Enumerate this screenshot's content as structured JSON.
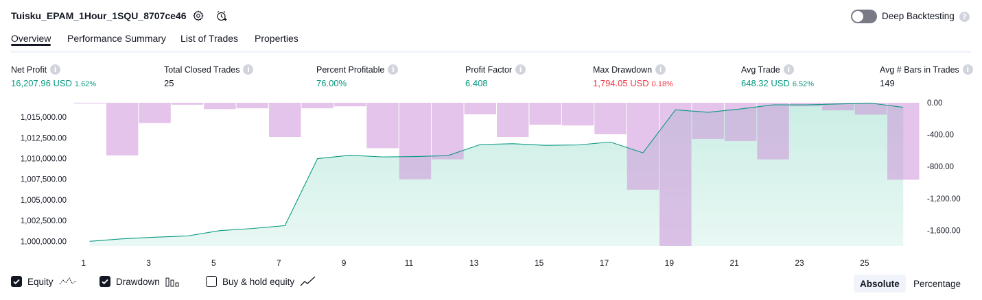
{
  "header": {
    "title": "Tuisku_EPAM_1Hour_1SQU_8707ce46",
    "deep_backtesting_label": "Deep Backtesting",
    "deep_backtesting_enabled": false
  },
  "tabs": [
    {
      "label": "Overview",
      "active": true
    },
    {
      "label": "Performance Summary",
      "active": false
    },
    {
      "label": "List of Trades",
      "active": false
    },
    {
      "label": "Properties",
      "active": false
    }
  ],
  "metrics": [
    {
      "label": "Net Profit",
      "value": "16,207.96 USD",
      "pct": "1.62%",
      "tone": "green"
    },
    {
      "label": "Total Closed Trades",
      "value": "25",
      "pct": "",
      "tone": "neutral"
    },
    {
      "label": "Percent Profitable",
      "value": "76.00%",
      "pct": "",
      "tone": "green"
    },
    {
      "label": "Profit Factor",
      "value": "6.408",
      "pct": "",
      "tone": "green"
    },
    {
      "label": "Max Drawdown",
      "value": "1,794.05 USD",
      "pct": "0.18%",
      "tone": "red"
    },
    {
      "label": "Avg Trade",
      "value": "648.32 USD",
      "pct": "6.52%",
      "tone": "green"
    },
    {
      "label": "Avg # Bars in Trades",
      "value": "149",
      "pct": "",
      "tone": "neutral"
    }
  ],
  "chart_data": {
    "type": "area",
    "trades": [
      1,
      2,
      3,
      4,
      5,
      6,
      7,
      8,
      9,
      10,
      11,
      12,
      13,
      14,
      15,
      16,
      17,
      18,
      19,
      20,
      21,
      22,
      23,
      24,
      25,
      26
    ],
    "x_tick_labels": [
      "1",
      "3",
      "5",
      "7",
      "9",
      "11",
      "13",
      "15",
      "17",
      "19",
      "21",
      "23",
      "25"
    ],
    "left_axis_ticks": [
      "1,015,000.00",
      "1,012,500.00",
      "1,010,000.00",
      "1,007,500.00",
      "1,005,000.00",
      "1,002,500.00",
      "1,000,000.00"
    ],
    "right_axis_ticks": [
      "0.00",
      "-400.00",
      "-800.00",
      "-1,200.00",
      "-1,600.00"
    ],
    "ylim_equity": [
      999450,
      1016750
    ],
    "ylim_drawdown": [
      -1794.05,
      0
    ],
    "series": [
      {
        "name": "Equity",
        "color": "#089981",
        "values": [
          1000000,
          1000300,
          1000500,
          1000650,
          1001300,
          1001550,
          1001900,
          1010000,
          1010400,
          1010200,
          1010250,
          1010350,
          1011700,
          1011800,
          1011600,
          1011650,
          1012000,
          1010700,
          1015900,
          1015600,
          1016000,
          1016500,
          1016500,
          1016600,
          1016700,
          1016200
        ]
      },
      {
        "name": "Drawdown",
        "color": "#ce93d8",
        "values": [
          -10,
          -660,
          -255,
          -25,
          -80,
          -70,
          -430,
          -70,
          -45,
          -570,
          -960,
          -710,
          -145,
          -430,
          -275,
          -285,
          -395,
          -1090,
          -1794,
          -455,
          -480,
          -710,
          -45,
          -95,
          -150,
          -965
        ]
      }
    ]
  },
  "legend": {
    "equity": {
      "label": "Equity",
      "checked": true
    },
    "drawdown": {
      "label": "Drawdown",
      "checked": true
    },
    "buy_hold": {
      "label": "Buy & hold equity",
      "checked": false
    }
  },
  "scale_toggle": {
    "absolute": "Absolute",
    "percentage": "Percentage",
    "selected": "absolute"
  },
  "colors": {
    "green": "#089981",
    "red": "#f23645",
    "drawdown_fill": "#e1bee7",
    "equity_fill": "#c8ede3"
  }
}
